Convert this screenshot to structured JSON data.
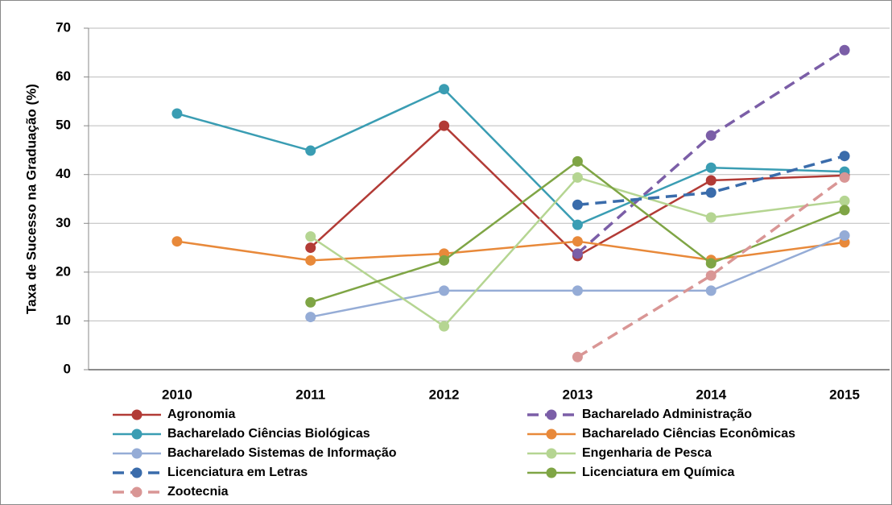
{
  "chart_data": {
    "type": "line",
    "y_label": "Taxa de Sucesso na Graduação (%)",
    "categories": [
      "2010",
      "2011",
      "2012",
      "2013",
      "2014",
      "2015"
    ],
    "ylim": [
      0,
      70
    ],
    "yticks": [
      0,
      10,
      20,
      30,
      40,
      50,
      60,
      70
    ],
    "grid": true,
    "series": [
      {
        "name": "Agronomia",
        "color": "#b23b36",
        "dashed": false,
        "values": [
          null,
          25,
          50,
          23.3,
          38.8,
          39.8
        ]
      },
      {
        "name": "Bacharelado Administração",
        "color": "#7b5ea7",
        "dashed": true,
        "values": [
          null,
          null,
          null,
          23.8,
          48,
          65.5
        ]
      },
      {
        "name": "Bacharelado Ciências Biológicas",
        "color": "#3a9db3",
        "dashed": false,
        "values": [
          52.5,
          44.9,
          57.5,
          29.7,
          41.4,
          40.6
        ]
      },
      {
        "name": "Bacharelado Ciências Econômicas",
        "color": "#e8893a",
        "dashed": false,
        "values": [
          26.3,
          22.4,
          23.8,
          26.3,
          22.5,
          26.1
        ]
      },
      {
        "name": "Bacharelado Sistemas de Informação",
        "color": "#95acd6",
        "dashed": false,
        "values": [
          null,
          10.8,
          16.2,
          16.2,
          16.2,
          27.5
        ]
      },
      {
        "name": "Engenharia de Pesca",
        "color": "#b5d592",
        "dashed": false,
        "values": [
          null,
          27.3,
          8.9,
          39.4,
          31.2,
          34.6
        ]
      },
      {
        "name": "Licenciatura em Letras",
        "color": "#3a6cab",
        "dashed": true,
        "values": [
          null,
          null,
          null,
          33.8,
          36.3,
          43.8
        ]
      },
      {
        "name": "Licenciatura em Química",
        "color": "#7fa545",
        "dashed": false,
        "values": [
          null,
          13.8,
          22.4,
          42.7,
          21.8,
          32.7
        ]
      },
      {
        "name": "Zootecnia",
        "color": "#d99695",
        "dashed": true,
        "values": [
          null,
          null,
          null,
          2.6,
          19.3,
          39.4
        ]
      }
    ]
  }
}
